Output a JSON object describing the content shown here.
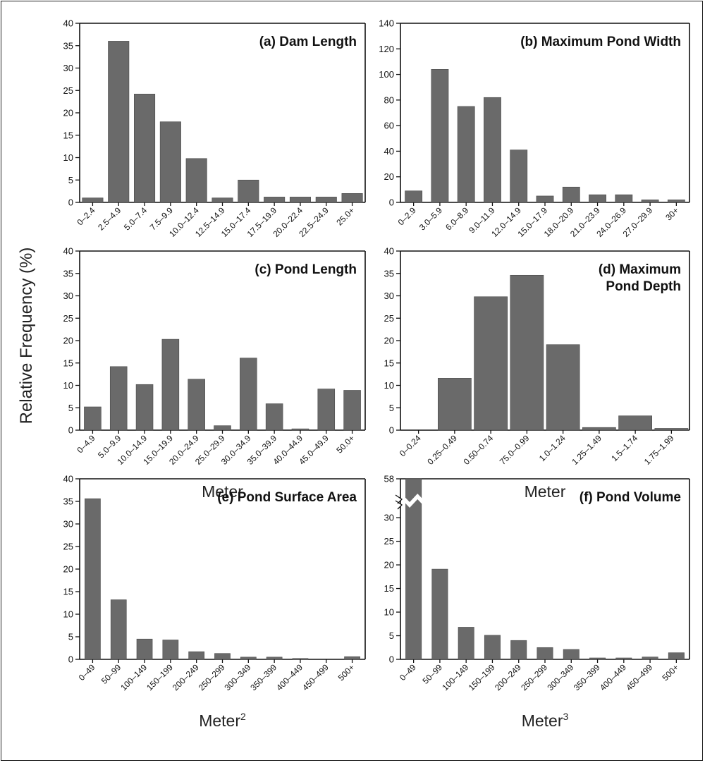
{
  "figure": {
    "ylabel": "Relative Frequency (%)"
  },
  "chart_data": [
    {
      "id": "a",
      "type": "bar",
      "title": "(a) Dam Length",
      "xlabel": "",
      "xlabel_sup": "",
      "ylim": [
        0,
        40
      ],
      "yticks": [
        "0",
        "5",
        "10",
        "15",
        "20",
        "25",
        "30",
        "35",
        "40"
      ],
      "categories": [
        "0–2.4",
        "2.5–4.9",
        "5.0–7.4",
        "7.5–9.9",
        "10.0–12.4",
        "12.5–14.9",
        "15.0–17.4",
        "17.5–19.9",
        "20.0–22.4",
        "22.5–24.9",
        "25.0+"
      ],
      "values": [
        1,
        36,
        24.2,
        18,
        9.8,
        1,
        5,
        1.2,
        1.2,
        1.2,
        2
      ]
    },
    {
      "id": "b",
      "type": "bar",
      "title": "(b) Maximum Pond Width",
      "xlabel": "",
      "xlabel_sup": "",
      "ylim": [
        0,
        140
      ],
      "yticks": [
        "0",
        "20",
        "40",
        "60",
        "80",
        "100",
        "120",
        "140"
      ],
      "categories": [
        "0–2.9",
        "3.0–5.9",
        "6.0–8.9",
        "9.0–11.9",
        "12.0–14.9",
        "15.0–17.9",
        "18.0–20.9",
        "21.0–23.9",
        "24.0–26.9",
        "27.0–29.9",
        "30+"
      ],
      "values": [
        9,
        104,
        75,
        82,
        41,
        5,
        12,
        6,
        6,
        2,
        2
      ]
    },
    {
      "id": "c",
      "type": "bar",
      "title": "(c) Pond Length",
      "xlabel": "Meter",
      "xlabel_sup": "",
      "ylim": [
        0,
        40
      ],
      "yticks": [
        "0",
        "5",
        "10",
        "15",
        "20",
        "25",
        "30",
        "35",
        "40"
      ],
      "categories": [
        "0–4.9",
        "5.0–9.9",
        "10.0–14.9",
        "15.0–19.9",
        "20.0–24.9",
        "25.0–29.9",
        "30.0–34.9",
        "35.0–39.9",
        "40.0–44.9",
        "45.0–49.9",
        "50.0+"
      ],
      "values": [
        5.2,
        14.2,
        10.2,
        20.3,
        11.4,
        1,
        16.1,
        5.9,
        0.3,
        9.2,
        8.9
      ]
    },
    {
      "id": "d",
      "type": "bar",
      "title": "(d) Maximum Pond Depth",
      "title_lines": [
        "(d) Maximum",
        "Pond Depth"
      ],
      "xlabel": "Meter",
      "xlabel_sup": "",
      "ylim": [
        0,
        40
      ],
      "yticks": [
        "0",
        "5",
        "10",
        "15",
        "20",
        "25",
        "30",
        "35",
        "40"
      ],
      "categories": [
        "0–0.24",
        "0.25–0.49",
        "0.50–0.74",
        "75.0–0.99",
        "1.0–1.24",
        "1.25–1.49",
        "1.5–1.74",
        "1.75–1.99"
      ],
      "values": [
        0,
        11.6,
        29.8,
        34.6,
        19.1,
        0.6,
        3.2,
        0.4
      ]
    },
    {
      "id": "e",
      "type": "bar",
      "title": "(e) Pond Surface Area",
      "xlabel": "Meter",
      "xlabel_sup": "2",
      "ylim": [
        0,
        40
      ],
      "yticks": [
        "0",
        "5",
        "10",
        "15",
        "20",
        "25",
        "30",
        "35",
        "40"
      ],
      "categories": [
        "0–49",
        "50–99",
        "100–149",
        "150–199",
        "200–249",
        "250–299",
        "300–349",
        "350–399",
        "400–449",
        "450–499",
        "500+"
      ],
      "values": [
        35.6,
        13.2,
        4.5,
        4.3,
        1.7,
        1.3,
        0.5,
        0.5,
        0.2,
        0,
        0.6
      ]
    },
    {
      "id": "f",
      "type": "bar",
      "title": "(f) Pond Volume",
      "xlabel": "Meter",
      "xlabel_sup": "3",
      "ylim": [
        0,
        58
      ],
      "axis_break": [
        33,
        58
      ],
      "yticks": [
        "0",
        "5",
        "10",
        "15",
        "20",
        "25",
        "30",
        "58"
      ],
      "categories": [
        "0–49",
        "50–99",
        "100–149",
        "150–199",
        "200–249",
        "250–299",
        "300–349",
        "350–399",
        "400–449",
        "450–499",
        "500+"
      ],
      "values": [
        58,
        19.1,
        6.8,
        5.1,
        4,
        2.5,
        2.1,
        0.3,
        0.3,
        0.5,
        1.4
      ]
    }
  ]
}
